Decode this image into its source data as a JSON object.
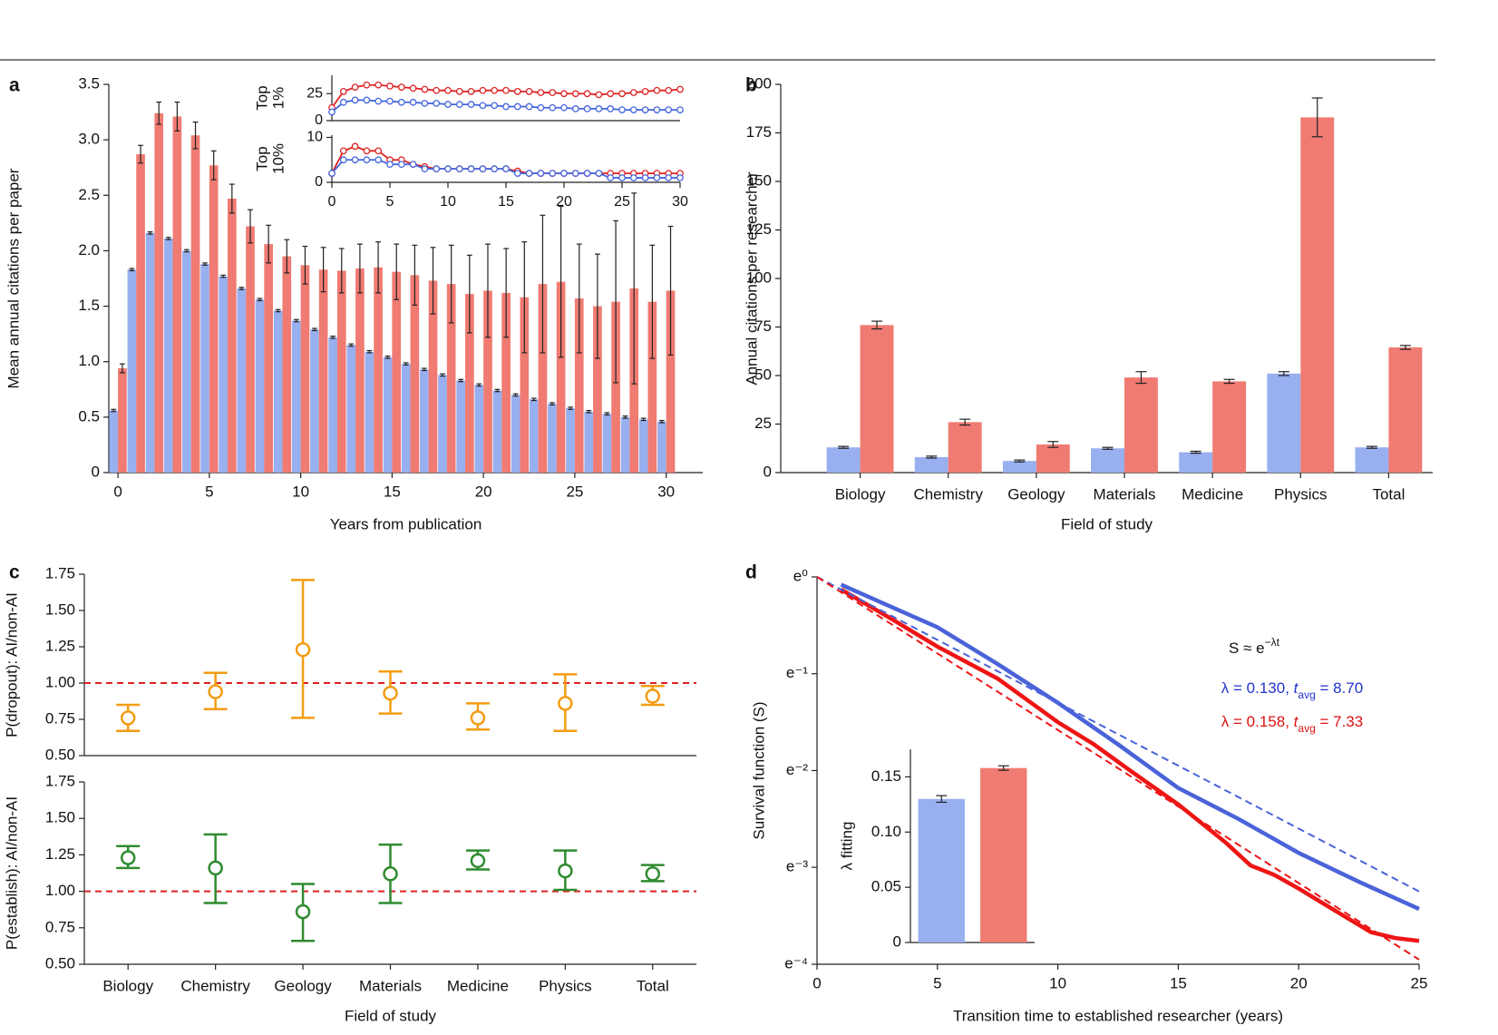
{
  "chart_data": [
    {
      "type": "bar",
      "label": "a",
      "xlabel": "Years from publication",
      "ylabel": "Mean annual citations per paper",
      "x": [
        0,
        1,
        2,
        3,
        4,
        5,
        6,
        7,
        8,
        9,
        10,
        11,
        12,
        13,
        14,
        15,
        16,
        17,
        18,
        19,
        20,
        21,
        22,
        23,
        24,
        25,
        26,
        27,
        28,
        29,
        30
      ],
      "xlim": [
        -0.5,
        32
      ],
      "xticks": [
        0,
        5,
        10,
        15,
        20,
        25,
        30
      ],
      "ylim": [
        0,
        3.5
      ],
      "yticks": [
        0,
        0.5,
        {
          "value": 1,
          "label": "1.0"
        },
        1.5,
        {
          "value": 2,
          "label": "2.0"
        },
        2.5,
        {
          "value": 3,
          "label": "3.0"
        },
        3.5
      ],
      "series": [
        {
          "color": "#98aff0",
          "values": [
            0.56,
            1.83,
            2.16,
            2.11,
            2.0,
            1.88,
            1.77,
            1.66,
            1.56,
            1.46,
            1.37,
            1.29,
            1.22,
            1.15,
            1.09,
            1.04,
            0.98,
            0.93,
            0.88,
            0.83,
            0.79,
            0.74,
            0.7,
            0.66,
            0.62,
            0.58,
            0.55,
            0.53,
            0.5,
            0.48,
            0.46
          ],
          "errors": [
            0.01,
            0.01,
            0.01,
            0.01,
            0.01,
            0.01,
            0.01,
            0.01,
            0.01,
            0.01,
            0.01,
            0.01,
            0.01,
            0.01,
            0.01,
            0.01,
            0.01,
            0.01,
            0.01,
            0.01,
            0.01,
            0.01,
            0.01,
            0.01,
            0.01,
            0.01,
            0.01,
            0.01,
            0.01,
            0.01,
            0.01
          ]
        },
        {
          "color": "#f07b72",
          "values": [
            0.94,
            2.87,
            3.24,
            3.21,
            3.04,
            2.77,
            2.47,
            2.22,
            2.06,
            1.95,
            1.87,
            1.83,
            1.82,
            1.84,
            1.85,
            1.81,
            1.78,
            1.73,
            1.7,
            1.61,
            1.64,
            1.62,
            1.58,
            1.7,
            1.72,
            1.57,
            1.5,
            1.54,
            1.66,
            1.54,
            1.64
          ],
          "errors": [
            0.04,
            0.08,
            0.1,
            0.13,
            0.12,
            0.13,
            0.13,
            0.15,
            0.17,
            0.15,
            0.17,
            0.2,
            0.2,
            0.22,
            0.23,
            0.25,
            0.27,
            0.3,
            0.35,
            0.35,
            0.42,
            0.4,
            0.5,
            0.62,
            0.68,
            0.49,
            0.47,
            0.73,
            0.86,
            0.51,
            0.58
          ]
        }
      ]
    },
    {
      "type": "line",
      "ylabel_lines": [
        "Top",
        "1%"
      ],
      "xlim": [
        0,
        30
      ],
      "ylim": [
        0,
        42
      ],
      "yticks": [
        0,
        25
      ],
      "series": [
        {
          "color": "#dd2222",
          "x": [
            0,
            1,
            2,
            3,
            4,
            5,
            6,
            7,
            8,
            9,
            10,
            11,
            12,
            13,
            14,
            15,
            16,
            17,
            18,
            19,
            20,
            21,
            22,
            23,
            24,
            25,
            26,
            27,
            28,
            29,
            30
          ],
          "values": [
            12,
            27,
            31,
            33,
            33,
            32,
            31,
            30,
            29,
            28,
            28,
            27,
            27,
            28,
            28,
            28,
            27,
            27,
            26,
            26,
            25,
            25,
            25,
            24,
            25,
            25,
            26,
            27,
            28,
            28,
            29
          ]
        },
        {
          "color": "#4466dd",
          "x": [
            0,
            1,
            2,
            3,
            4,
            5,
            6,
            7,
            8,
            9,
            10,
            11,
            12,
            13,
            14,
            15,
            16,
            17,
            18,
            19,
            20,
            21,
            22,
            23,
            24,
            25,
            26,
            27,
            28,
            29,
            30
          ],
          "values": [
            8,
            17,
            19,
            19,
            18,
            18,
            17,
            17,
            16,
            16,
            15,
            15,
            15,
            14,
            14,
            13,
            13,
            13,
            12,
            12,
            12,
            11,
            11,
            11,
            11,
            10,
            10,
            10,
            10,
            10,
            10
          ]
        }
      ]
    },
    {
      "type": "line",
      "ylabel_lines": [
        "Top",
        "10%"
      ],
      "xlim": [
        0,
        30
      ],
      "xticks": [
        0,
        5,
        10,
        15,
        20,
        25,
        30
      ],
      "ylim": [
        0,
        10.5
      ],
      "yticks": [
        0,
        10
      ],
      "series": [
        {
          "color": "#dd2222",
          "x": [
            0,
            1,
            2,
            3,
            4,
            5,
            6,
            7,
            8,
            9,
            10,
            11,
            12,
            13,
            14,
            15,
            16,
            17,
            18,
            19,
            20,
            21,
            22,
            23,
            24,
            25,
            26,
            27,
            28,
            29,
            30
          ],
          "values": [
            2,
            7,
            8,
            7,
            7,
            5,
            5,
            4,
            3.5,
            3,
            3,
            3,
            3,
            3,
            3,
            3,
            2.5,
            2,
            2,
            2,
            2,
            2,
            2,
            2,
            2,
            2,
            2,
            2,
            2,
            2,
            2
          ]
        },
        {
          "color": "#4466dd",
          "x": [
            0,
            1,
            2,
            3,
            4,
            5,
            6,
            7,
            8,
            9,
            10,
            11,
            12,
            13,
            14,
            15,
            16,
            17,
            18,
            19,
            20,
            21,
            22,
            23,
            24,
            25,
            26,
            27,
            28,
            29,
            30
          ],
          "values": [
            2,
            5,
            5,
            5,
            5,
            4,
            4,
            4,
            3,
            3,
            3,
            3,
            3,
            3,
            3,
            3,
            2,
            2,
            2,
            2,
            2,
            2,
            2,
            2,
            1,
            1,
            1,
            1,
            1,
            1,
            1
          ]
        }
      ]
    },
    {
      "type": "bar",
      "label": "b",
      "xlabel": "Field of study",
      "ylabel": "Annual citations per researcher",
      "categories": [
        "Biology",
        "Chemistry",
        "Geology",
        "Materials",
        "Medicine",
        "Physics",
        "Total"
      ],
      "ylim": [
        0,
        200
      ],
      "yticks": [
        0,
        25,
        50,
        75,
        100,
        125,
        150,
        175,
        200
      ],
      "series": [
        {
          "color": "#98aff0",
          "values": [
            13,
            8,
            6,
            12.5,
            10.5,
            51,
            13
          ],
          "errors": [
            0.5,
            0.5,
            0.5,
            0.5,
            0.5,
            1,
            0.5
          ]
        },
        {
          "color": "#f07b72",
          "values": [
            76,
            26,
            14.5,
            49,
            47,
            183,
            64.5
          ],
          "errors": [
            2,
            1.5,
            1.5,
            3,
            1,
            10,
            1
          ]
        }
      ]
    },
    {
      "type": "errorbar",
      "label": "c",
      "ylabel": "P(dropout): AI/non-AI",
      "color": "#f39c12",
      "ylim": [
        0.5,
        1.75
      ],
      "yticks": [
        {
          "value": 0.5,
          "label": "0.50"
        },
        0.75,
        {
          "value": 1,
          "label": "1.00"
        },
        1.25,
        {
          "value": 1.5,
          "label": "1.50"
        },
        1.75
      ],
      "hline": 1,
      "hline_color": "#dd2222",
      "values": [
        0.76,
        0.94,
        1.23,
        0.93,
        0.76,
        0.86,
        0.91
      ],
      "lower": [
        0.67,
        0.82,
        0.76,
        0.79,
        0.68,
        0.67,
        0.85
      ],
      "upper": [
        0.85,
        1.07,
        1.71,
        1.08,
        0.86,
        1.06,
        0.98
      ]
    },
    {
      "type": "errorbar",
      "xlabel": "Field of study",
      "ylabel": "P(establish): AI/non-AI",
      "color": "#2e8b2e",
      "categories": [
        "Biology",
        "Chemistry",
        "Geology",
        "Materials",
        "Medicine",
        "Physics",
        "Total"
      ],
      "ylim": [
        0.5,
        1.75
      ],
      "yticks": [
        {
          "value": 0.5,
          "label": "0.50"
        },
        0.75,
        {
          "value": 1,
          "label": "1.00"
        },
        1.25,
        {
          "value": 1.5,
          "label": "1.50"
        },
        1.75
      ],
      "hline": 1,
      "hline_color": "#dd2222",
      "values": [
        1.23,
        1.16,
        0.86,
        1.12,
        1.21,
        1.14,
        1.12
      ],
      "lower": [
        1.16,
        0.92,
        0.66,
        0.92,
        1.15,
        1.01,
        1.07
      ],
      "upper": [
        1.31,
        1.39,
        1.05,
        1.32,
        1.28,
        1.28,
        1.18
      ]
    },
    {
      "type": "line",
      "label": "d",
      "log": true,
      "xlabel": "Transition time to established researcher (years)",
      "ylabel": "Survival function (S)",
      "xlim": [
        0,
        25
      ],
      "xticks": [
        0,
        5,
        10,
        15,
        20,
        25
      ],
      "ylim": [
        0.0183,
        1
      ],
      "yticks": [
        {
          "value": 1,
          "label": "e⁰"
        },
        {
          "value": 0.3679,
          "label": "e⁻¹"
        },
        {
          "value": 0.1353,
          "label": "e⁻²"
        },
        {
          "value": 0.0498,
          "label": "e⁻³"
        },
        {
          "value": 0.0183,
          "label": "e⁻⁴"
        }
      ],
      "series": [
        {
          "color": "#4a63d8",
          "linestyle": "solid",
          "x": [
            1,
            3,
            5,
            7.5,
            10,
            12.5,
            15,
            17.5,
            20,
            22.5,
            25
          ],
          "values": [
            0.9231,
            0.7408,
            0.5945,
            0.4066,
            0.2725,
            0.1773,
            0.113,
            0.0821,
            0.0578,
            0.0429,
            0.0324
          ]
        },
        {
          "color": "#ee1515",
          "linestyle": "solid",
          "x": [
            1,
            3,
            5,
            7.5,
            10,
            11.5,
            13,
            15,
            17,
            18,
            19,
            20,
            21,
            22,
            23,
            24,
            25
          ],
          "values": [
            0.8781,
            0.657,
            0.4868,
            0.3499,
            0.2231,
            0.1773,
            0.1353,
            0.0954,
            0.0639,
            0.0508,
            0.046,
            0.04,
            0.0344,
            0.0296,
            0.0255,
            0.024,
            0.0233
          ]
        },
        {
          "color": "#4a63d8",
          "linestyle": "dashed",
          "x": [
            0,
            25
          ],
          "values": [
            1,
            0.0388
          ]
        },
        {
          "color": "#ee1515",
          "linestyle": "dashed",
          "x": [
            0,
            25
          ],
          "values": [
            1,
            0.0192
          ]
        }
      ],
      "annotations": [
        {
          "color": "#111111",
          "parts": [
            "S ≈ e",
            "−λt"
          ]
        },
        {
          "color": "#2233cc",
          "parts": [
            "λ = 0.130, ",
            "t",
            "avg",
            " = 8.70"
          ]
        },
        {
          "color": "#dd1111",
          "parts": [
            "λ = 0.158, ",
            "t",
            "avg",
            " = 7.33"
          ]
        }
      ]
    },
    {
      "type": "bar",
      "ylabel": "λ fitting",
      "ylim": [
        0,
        0.175
      ],
      "yticks": [
        0,
        0.05,
        {
          "value": 0.1,
          "label": "0.10"
        },
        0.15
      ],
      "values": [
        0.13,
        0.158
      ],
      "errors": [
        0.003,
        0.002
      ],
      "colors": [
        "#98aff0",
        "#f07b72"
      ]
    }
  ]
}
